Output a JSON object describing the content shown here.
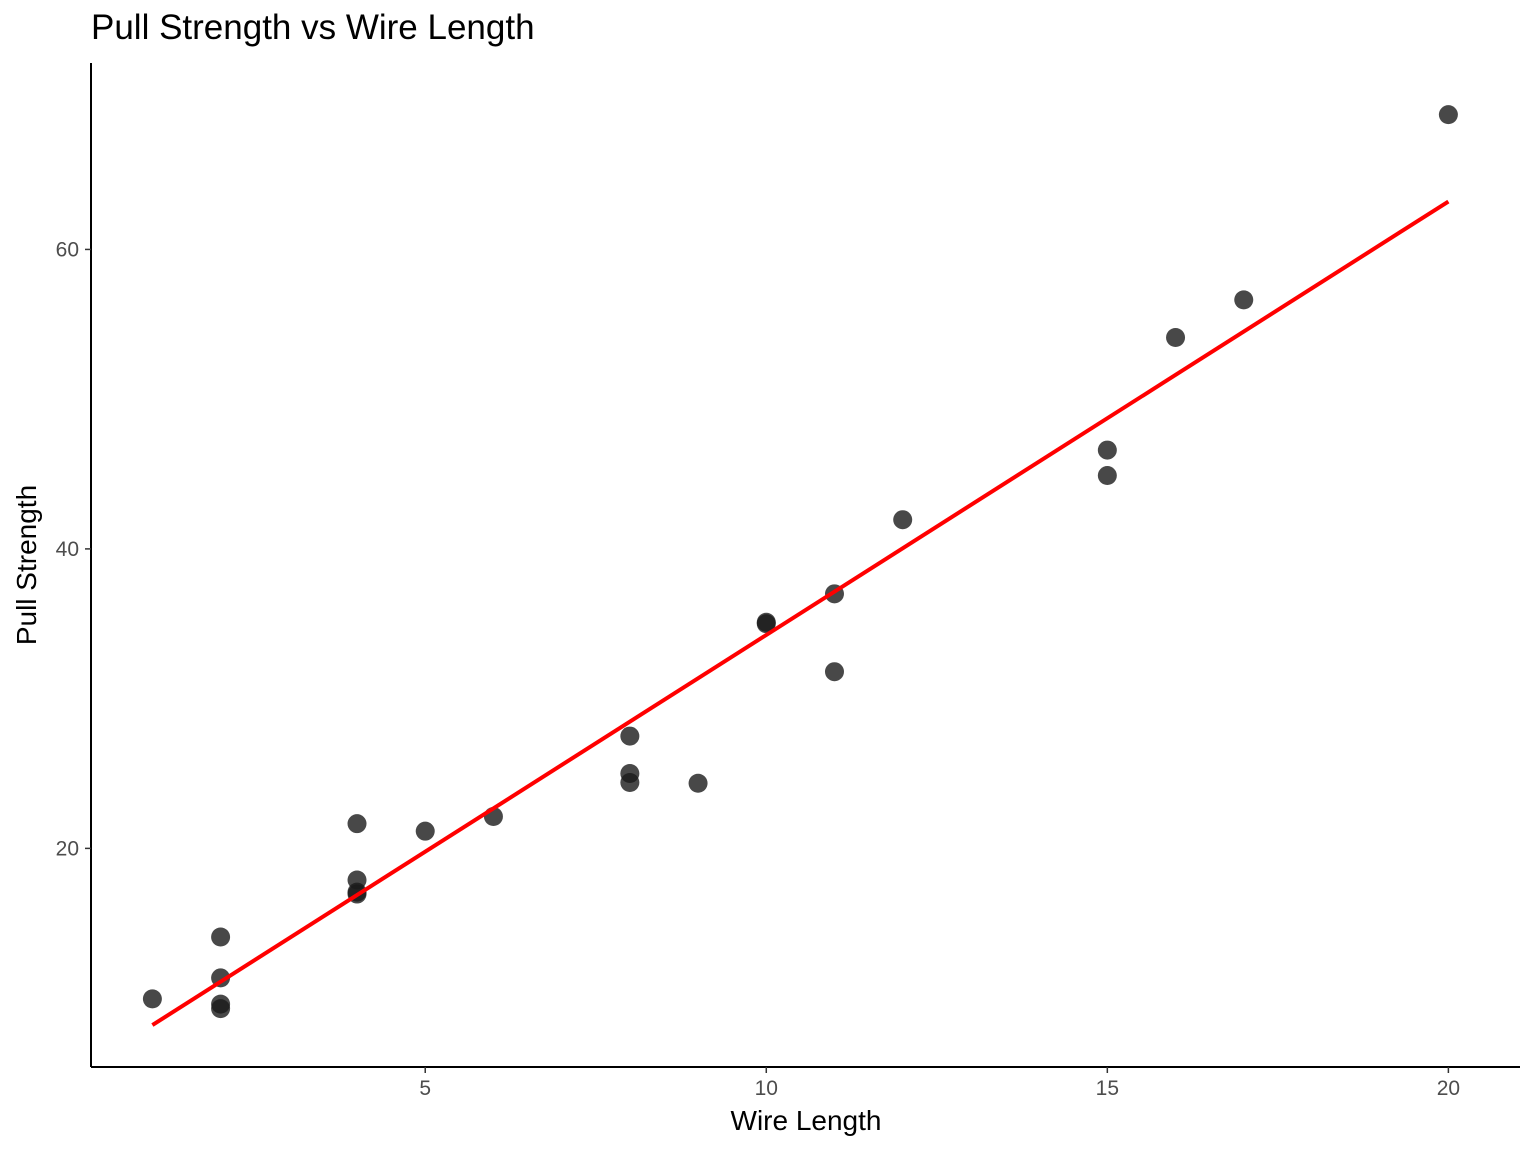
{
  "chart_data": {
    "type": "scatter",
    "title": "Pull Strength vs Wire Length",
    "xlabel": "Wire Length",
    "ylabel": "Pull Strength",
    "xlim": [
      0.1,
      21.05
    ],
    "ylim": [
      5.4,
      72.45
    ],
    "x_ticks": [
      5,
      10,
      15,
      20
    ],
    "y_ticks": [
      20,
      40,
      60
    ],
    "grid": false,
    "legend": "none",
    "point_color": "#1a1a1a",
    "point_opacity": 0.8,
    "line_color": "#ff0000",
    "points": [
      {
        "x": 1,
        "y": 9.95
      },
      {
        "x": 2,
        "y": 14.08
      },
      {
        "x": 2,
        "y": 11.35
      },
      {
        "x": 2,
        "y": 9.6
      },
      {
        "x": 2,
        "y": 9.3
      },
      {
        "x": 4,
        "y": 21.65
      },
      {
        "x": 4,
        "y": 17.89
      },
      {
        "x": 4,
        "y": 17.08
      },
      {
        "x": 4,
        "y": 16.95
      },
      {
        "x": 5,
        "y": 21.15
      },
      {
        "x": 6,
        "y": 22.13
      },
      {
        "x": 8,
        "y": 27.5
      },
      {
        "x": 8,
        "y": 25.0
      },
      {
        "x": 8,
        "y": 24.4
      },
      {
        "x": 9,
        "y": 24.35
      },
      {
        "x": 10,
        "y": 35.1
      },
      {
        "x": 10,
        "y": 35.0
      },
      {
        "x": 11,
        "y": 37.0
      },
      {
        "x": 11,
        "y": 31.8
      },
      {
        "x": 12,
        "y": 41.95
      },
      {
        "x": 15,
        "y": 46.6
      },
      {
        "x": 15,
        "y": 44.9
      },
      {
        "x": 16,
        "y": 54.12
      },
      {
        "x": 17,
        "y": 56.63
      },
      {
        "x": 20,
        "y": 69.0
      }
    ],
    "fit_line": {
      "x": [
        1,
        20
      ],
      "y": [
        8.2,
        63.2
      ]
    }
  }
}
